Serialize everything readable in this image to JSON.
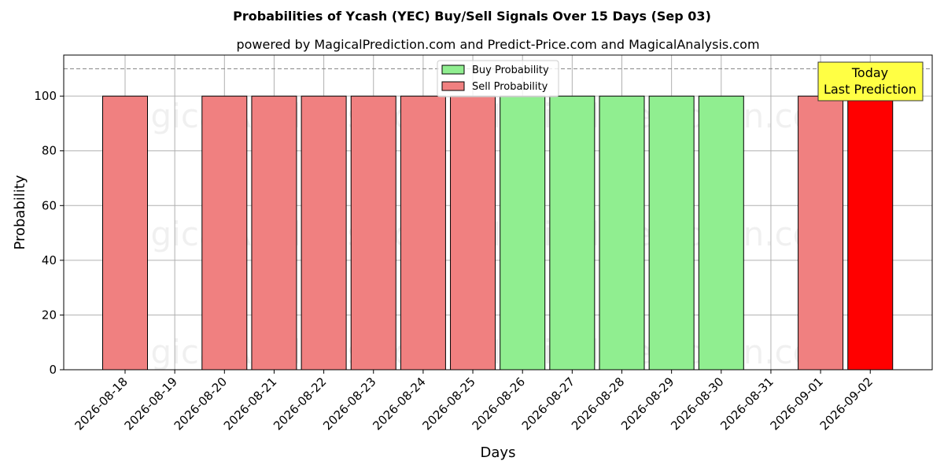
{
  "chart_data": {
    "type": "bar",
    "title": "Probabilities of Ycash (YEC) Buy/Sell Signals Over 15 Days (Sep 03)",
    "subtitle": "powered by MagicalPrediction.com and Predict-Price.com and MagicalAnalysis.com",
    "xlabel": "Days",
    "ylabel": "Probability",
    "ylim": [
      0,
      115
    ],
    "yticks": [
      0,
      20,
      40,
      60,
      80,
      100
    ],
    "reference_line": 110,
    "grid": true,
    "legend_position": "top-center",
    "categories": [
      "2026-08-18",
      "2026-08-19",
      "2026-08-20",
      "2026-08-21",
      "2026-08-22",
      "2026-08-23",
      "2026-08-24",
      "2026-08-25",
      "2026-08-26",
      "2026-08-27",
      "2026-08-28",
      "2026-08-29",
      "2026-08-30",
      "2026-08-31",
      "2026-09-01",
      "2026-09-02"
    ],
    "series": [
      {
        "name": "Buy Probability",
        "color": "#90ee90",
        "values": [
          null,
          null,
          null,
          null,
          null,
          null,
          null,
          null,
          100,
          100,
          100,
          100,
          100,
          null,
          null,
          null
        ]
      },
      {
        "name": "Sell Probability",
        "color": "#f08080",
        "values": [
          100,
          null,
          100,
          100,
          100,
          100,
          100,
          100,
          null,
          null,
          null,
          null,
          null,
          null,
          100,
          100
        ]
      }
    ],
    "highlight": {
      "index": 15,
      "color": "#ff0000"
    },
    "annotation": {
      "lines": [
        "Today",
        "Last Prediction"
      ],
      "background": "#ffff44"
    },
    "watermarks": [
      "MagicalAnalysis.com",
      "MagicalPrediction.com"
    ]
  }
}
